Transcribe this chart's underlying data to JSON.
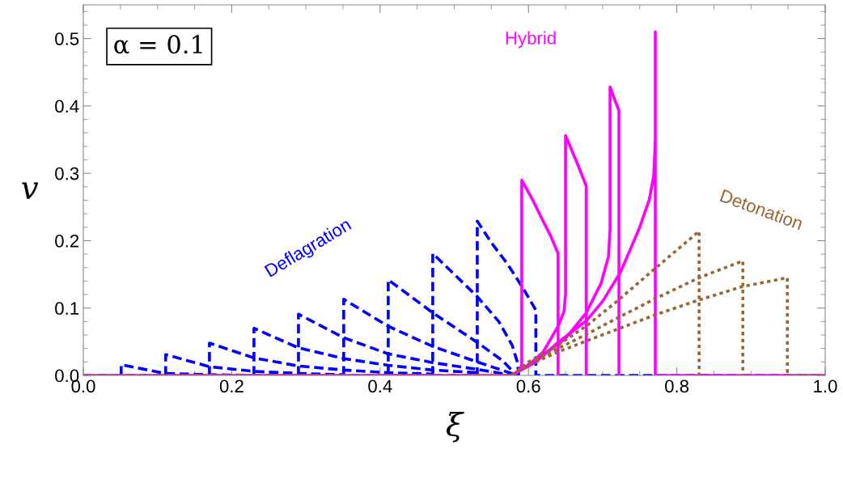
{
  "chart_data": {
    "type": "line",
    "xlabel": "ξ",
    "ylabel": "v",
    "xlim": [
      0,
      1
    ],
    "ylim": [
      0,
      0.55
    ],
    "xticks": [
      {
        "value": 0,
        "label": "0.0"
      },
      0.2,
      0.4,
      0.6,
      0.8,
      {
        "value": 1,
        "label": "1.0"
      }
    ],
    "yticks": [
      {
        "value": 0,
        "label": "0.0"
      },
      0.1,
      0.2,
      0.3,
      0.4,
      0.5
    ],
    "grid": false,
    "marker": "none",
    "annotations": [
      "α = 0.1"
    ],
    "series": [
      {
        "color": "#0000ff",
        "line_style": "dashed",
        "x": [
          0.051,
          0.051,
          0.11,
          0.17,
          0.23
        ],
        "values": [
          0,
          0.016,
          0.003,
          0.001,
          0
        ]
      },
      {
        "color": "#0000ff",
        "line_style": "dashed",
        "x": [
          0.111,
          0.111,
          0.17,
          0.23,
          0.29,
          0.351
        ],
        "values": [
          0,
          0.031,
          0.013,
          0.006,
          0.003,
          0.001
        ]
      },
      {
        "color": "#0000ff",
        "line_style": "dashed",
        "x": [
          0.17,
          0.17,
          0.23,
          0.29,
          0.351,
          0.411,
          0.471
        ],
        "values": [
          0,
          0.048,
          0.026,
          0.014,
          0.008,
          0.004,
          0.002
        ]
      },
      {
        "color": "#0000ff",
        "line_style": "dashed",
        "x": [
          0.23,
          0.23,
          0.29,
          0.351,
          0.411,
          0.471,
          0.531
        ],
        "values": [
          0,
          0.07,
          0.041,
          0.025,
          0.015,
          0.008,
          0.004
        ]
      },
      {
        "name": "Deflagration",
        "color": "#0000ff",
        "line_style": "dashed",
        "x": [
          0.29,
          0.29,
          0.351,
          0.411,
          0.471,
          0.531,
          0.58
        ],
        "values": [
          0,
          0.091,
          0.056,
          0.032,
          0.019,
          0.009,
          0
        ]
      },
      {
        "color": "#0000ff",
        "line_style": "dashed",
        "x": [
          0.351,
          0.351,
          0.411,
          0.471,
          0.531,
          0.58
        ],
        "values": [
          0,
          0.113,
          0.073,
          0.043,
          0.02,
          0.002
        ]
      },
      {
        "color": "#0000ff",
        "line_style": "dashed",
        "x": [
          0.411,
          0.411,
          0.471,
          0.531,
          0.565,
          0.58,
          0.585
        ],
        "values": [
          0,
          0.142,
          0.093,
          0.049,
          0.022,
          0.005,
          0
        ]
      },
      {
        "color": "#0000ff",
        "line_style": "dashed",
        "x": [
          0.471,
          0.471,
          0.531,
          0.56,
          0.578,
          0.585,
          0.587
        ],
        "values": [
          0,
          0.181,
          0.117,
          0.08,
          0.045,
          0.02,
          0
        ]
      },
      {
        "color": "#0000ff",
        "line_style": "dashed",
        "x": [
          0,
          0.531,
          0.531,
          0.55,
          0.572,
          0.593,
          0.61,
          0.61,
          1
        ],
        "values": [
          0,
          0,
          0.229,
          0.197,
          0.165,
          0.129,
          0.097,
          0,
          0
        ]
      },
      {
        "name": "Hybrid",
        "color": "#ff00ff",
        "line_style": "solid",
        "x": [
          0.577,
          0.585,
          0.591,
          0.591,
          0.605,
          0.618,
          0.63,
          0.64,
          0.64
        ],
        "values": [
          0,
          0.004,
          0.015,
          0.29,
          0.262,
          0.233,
          0.207,
          0.181,
          0
        ]
      },
      {
        "color": "#ff00ff",
        "line_style": "solid",
        "x": [
          0.577,
          0.6,
          0.62,
          0.64,
          0.648,
          0.65,
          0.65,
          0.665,
          0.678,
          0.678
        ],
        "values": [
          0,
          0.015,
          0.035,
          0.073,
          0.095,
          0.12,
          0.356,
          0.317,
          0.281,
          0
        ]
      },
      {
        "color": "#ff00ff",
        "line_style": "solid",
        "x": [
          0.577,
          0.62,
          0.65,
          0.678,
          0.698,
          0.708,
          0.71,
          0.71,
          0.722,
          0.722
        ],
        "values": [
          0,
          0.03,
          0.055,
          0.093,
          0.137,
          0.177,
          0.217,
          0.428,
          0.393,
          0
        ]
      },
      {
        "color": "#ff00ff",
        "line_style": "solid",
        "x": [
          0,
          0.577,
          0.61,
          0.64,
          0.678,
          0.7,
          0.724,
          0.749,
          0.763,
          0.769,
          0.771,
          0.771,
          0.771,
          1
        ],
        "values": [
          0,
          0,
          0.02,
          0.049,
          0.081,
          0.11,
          0.153,
          0.217,
          0.261,
          0.297,
          0.35,
          0.51,
          0,
          0
        ]
      },
      {
        "name": "Detonation",
        "color": "#996633",
        "line_style": "dotted",
        "x": [
          0.577,
          0.6,
          0.64,
          0.68,
          0.716,
          0.771,
          0.83,
          0.83
        ],
        "values": [
          0,
          0.02,
          0.045,
          0.075,
          0.107,
          0.159,
          0.214,
          0
        ]
      },
      {
        "color": "#996633",
        "line_style": "dotted",
        "x": [
          0.577,
          0.6,
          0.64,
          0.68,
          0.716,
          0.771,
          0.83,
          0.889,
          0.889
        ],
        "values": [
          0,
          0.017,
          0.04,
          0.062,
          0.083,
          0.114,
          0.145,
          0.17,
          0
        ]
      },
      {
        "color": "#996633",
        "line_style": "dotted",
        "x": [
          0,
          0.577,
          0.6,
          0.64,
          0.68,
          0.716,
          0.771,
          0.83,
          0.889,
          0.949,
          0.949,
          1
        ],
        "values": [
          0,
          0,
          0.015,
          0.035,
          0.052,
          0.067,
          0.09,
          0.112,
          0.132,
          0.145,
          0,
          0
        ]
      }
    ]
  }
}
